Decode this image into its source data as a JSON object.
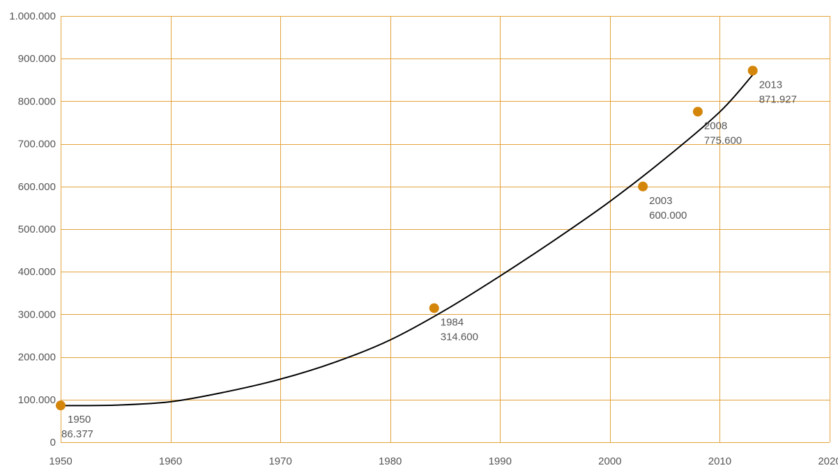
{
  "chart_data": {
    "type": "scatter",
    "title": "",
    "xlabel": "",
    "ylabel": "",
    "xlim": [
      1950,
      2020
    ],
    "ylim": [
      0,
      1000000
    ],
    "x_ticks": [
      1950,
      1960,
      1970,
      1980,
      1990,
      2000,
      2010,
      2020
    ],
    "y_ticks": [
      0,
      100000,
      200000,
      300000,
      400000,
      500000,
      600000,
      700000,
      800000,
      900000,
      1000000
    ],
    "x_tick_labels": [
      "1950",
      "1960",
      "1970",
      "1980",
      "1990",
      "2000",
      "2010",
      "2020"
    ],
    "y_tick_labels": [
      "0",
      "100.000",
      "200.000",
      "300.000",
      "400.000",
      "500.000",
      "600.000",
      "700.000",
      "800.000",
      "900.000",
      "1.000.000"
    ],
    "grid": true,
    "points": [
      {
        "x": 1950,
        "y": 86377,
        "year_label": "1950",
        "value_label": "86.377"
      },
      {
        "x": 1984,
        "y": 314600,
        "year_label": "1984",
        "value_label": "314.600"
      },
      {
        "x": 2003,
        "y": 600000,
        "year_label": "2003",
        "value_label": "600.000"
      },
      {
        "x": 2008,
        "y": 775600,
        "year_label": "2008",
        "value_label": "775.600"
      },
      {
        "x": 2013,
        "y": 871927,
        "year_label": "2013",
        "value_label": "871.927"
      }
    ],
    "trend_line": {
      "type": "smooth fit",
      "x": [
        1950,
        1955,
        1960,
        1965,
        1970,
        1975,
        1980,
        1985,
        1990,
        1995,
        2000,
        2005,
        2010,
        2013
      ],
      "y": [
        86000,
        87000,
        95000,
        118000,
        148000,
        188000,
        240000,
        310000,
        390000,
        475000,
        565000,
        665000,
        775000,
        862000
      ]
    }
  },
  "colors": {
    "grid": "#E3A23B",
    "point": "#D4860B",
    "trend_line": "#000000",
    "label_text": "#555555"
  }
}
